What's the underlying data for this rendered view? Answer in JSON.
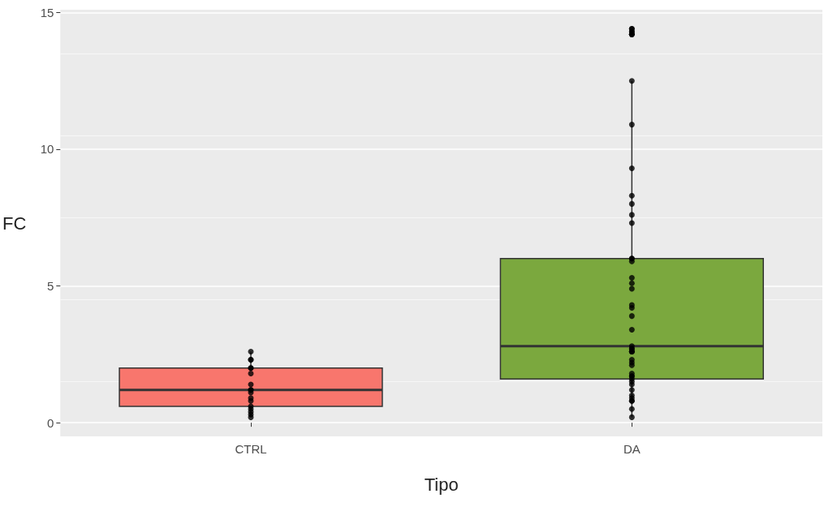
{
  "chart_data": {
    "type": "box",
    "xlabel": "Tipo",
    "ylabel": "FC",
    "categories": [
      "CTRL",
      "DA"
    ],
    "ylim": [
      -0.5,
      15.1
    ],
    "yticks": [
      0,
      5,
      10,
      15
    ],
    "grid": "y",
    "series": [
      {
        "type": "box",
        "colors": [
          "#f8766d",
          "#7ba83e"
        ],
        "boxes": [
          {
            "low": 0.2,
            "q1": 0.6,
            "median": 1.2,
            "q3": 2.0,
            "high": 2.6
          },
          {
            "low": 0.2,
            "q1": 1.6,
            "median": 2.8,
            "q3": 6.0,
            "high": 12.5
          }
        ]
      },
      {
        "type": "scatter",
        "color": "#000000",
        "marker": "circle",
        "x": [
          "CTRL",
          "CTRL",
          "CTRL",
          "CTRL",
          "CTRL",
          "CTRL",
          "CTRL",
          "CTRL",
          "CTRL",
          "CTRL",
          "CTRL",
          "CTRL",
          "CTRL",
          "CTRL",
          "CTRL",
          "CTRL",
          "CTRL",
          "DA",
          "DA",
          "DA",
          "DA",
          "DA",
          "DA",
          "DA",
          "DA",
          "DA",
          "DA",
          "DA",
          "DA",
          "DA",
          "DA",
          "DA",
          "DA",
          "DA",
          "DA",
          "DA",
          "DA",
          "DA",
          "DA",
          "DA",
          "DA",
          "DA",
          "DA",
          "DA",
          "DA",
          "DA",
          "DA",
          "DA",
          "DA",
          "DA",
          "DA",
          "DA",
          "DA",
          "DA",
          "DA",
          "DA",
          "DA",
          "DA",
          "DA",
          "DA",
          "DA",
          "DA",
          "DA"
        ],
        "values": [
          1.8,
          0.4,
          0.3,
          1.1,
          1.2,
          0.8,
          2.3,
          2.6,
          0.2,
          1.2,
          0.9,
          2.3,
          2.0,
          1.4,
          0.5,
          0.6,
          2.0,
          14.4,
          14.3,
          14.3,
          14.2,
          14.2,
          14.2,
          14.4,
          12.5,
          10.9,
          9.3,
          8.3,
          8.0,
          7.6,
          7.3,
          6.0,
          6.0,
          5.9,
          5.3,
          5.1,
          4.9,
          4.3,
          4.2,
          3.9,
          3.4,
          2.8,
          2.7,
          2.6,
          2.6,
          2.7,
          2.6,
          2.2,
          2.3,
          2.1,
          1.8,
          1.7,
          1.7,
          1.5,
          1.6,
          1.4,
          1.2,
          1.0,
          0.9,
          0.8,
          0.8,
          0.5,
          0.2
        ]
      }
    ]
  }
}
